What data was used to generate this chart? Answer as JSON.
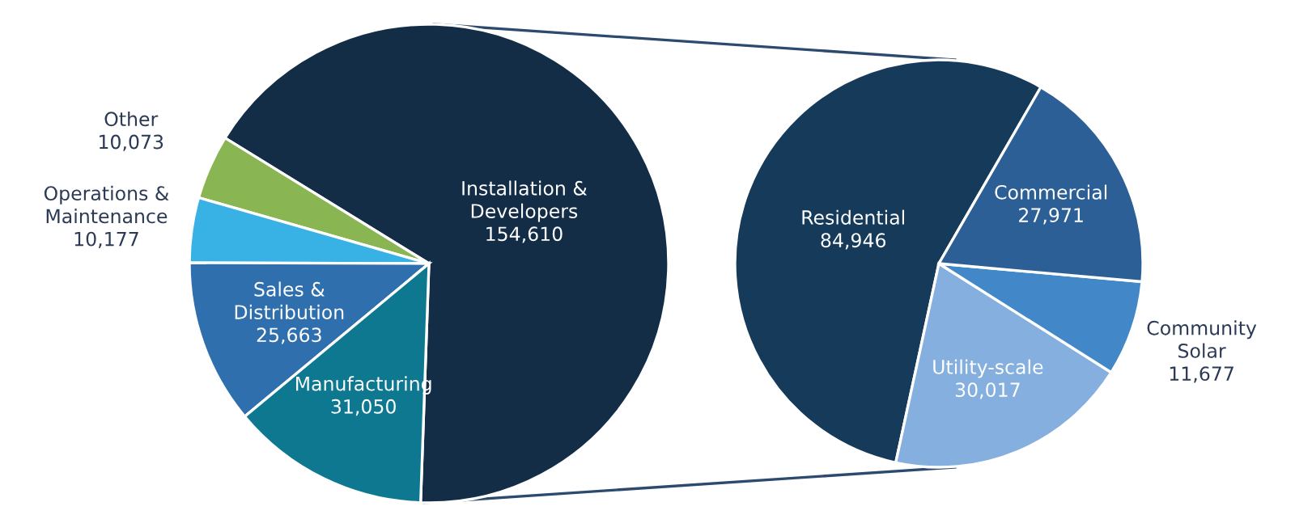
{
  "chart_data": [
    {
      "type": "pie",
      "categories": [
        "Installation &\nDevelopers",
        "Other",
        "Operations &\nMaintenance",
        "Sales &\nDistribution",
        "Manufacturing"
      ],
      "values": [
        154610,
        10073,
        10177,
        25663,
        31050
      ],
      "value_labels": [
        "154,610",
        "10,073",
        "10,177",
        "25,663",
        "31,050"
      ],
      "colors": [
        "#142d47",
        "#8ab553",
        "#38b1e4",
        "#2f6fae",
        "#0e7891"
      ]
    },
    {
      "type": "pie",
      "categories": [
        "Residential",
        "Utility-scale",
        "Community\nSolar",
        "Commercial"
      ],
      "values": [
        84946,
        30017,
        11677,
        27971
      ],
      "value_labels": [
        "84,946",
        "30,017",
        "11,677",
        "27,971"
      ],
      "colors": [
        "#163a5a",
        "#84afde",
        "#4288c8",
        "#2c5f96"
      ]
    }
  ]
}
